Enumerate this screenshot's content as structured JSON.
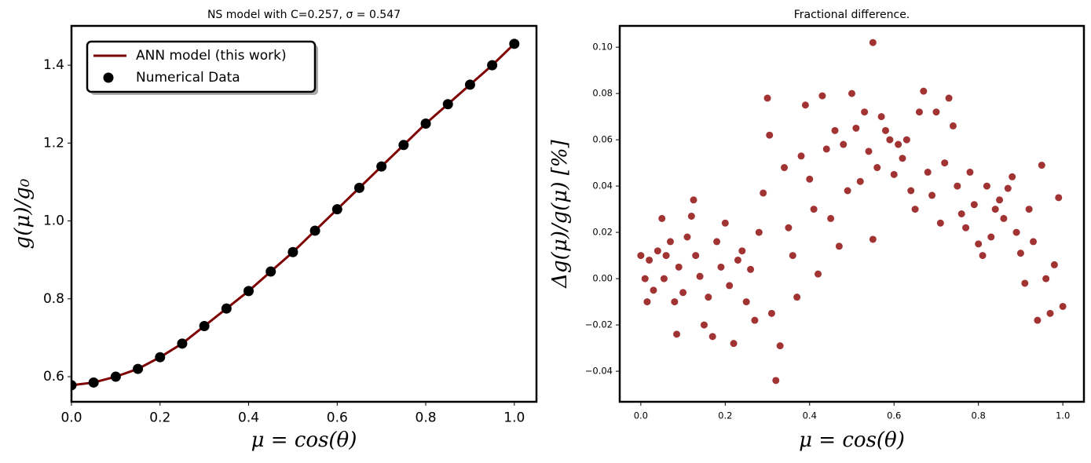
{
  "chart_data": [
    {
      "type": "line",
      "title": "NS model with C=0.257, σ = 0.547",
      "xlabel": "μ = cos(θ)",
      "ylabel": "g(μ)/g₀",
      "x": [
        0,
        0.05,
        0.1,
        0.15,
        0.2,
        0.25,
        0.3,
        0.35,
        0.4,
        0.45,
        0.5,
        0.55,
        0.6,
        0.65,
        0.7,
        0.75,
        0.8,
        0.85,
        0.9,
        0.95,
        1.0
      ],
      "series": [
        {
          "name": "ANN model (this work)",
          "type": "line",
          "color": "#7f0000",
          "values": [
            0.578,
            0.585,
            0.6,
            0.62,
            0.65,
            0.685,
            0.73,
            0.775,
            0.82,
            0.87,
            0.92,
            0.975,
            1.03,
            1.085,
            1.14,
            1.195,
            1.25,
            1.3,
            1.35,
            1.4,
            1.455
          ]
        },
        {
          "name": "Numerical Data",
          "type": "scatter",
          "color": "#000000",
          "values": [
            0.578,
            0.585,
            0.6,
            0.62,
            0.65,
            0.685,
            0.73,
            0.775,
            0.82,
            0.87,
            0.92,
            0.975,
            1.03,
            1.085,
            1.14,
            1.195,
            1.25,
            1.3,
            1.35,
            1.4,
            1.455
          ]
        }
      ],
      "xlim": [
        0,
        1.05
      ],
      "xticks": [
        {
          "value": 0,
          "label": "0.0"
        },
        0.2,
        0.4,
        0.6,
        0.8,
        {
          "value": 1,
          "label": "1.0"
        }
      ],
      "ylim": [
        0.5355,
        1.501
      ],
      "yticks": [
        0.6,
        0.8,
        {
          "value": 1,
          "label": "1.0"
        },
        1.2,
        1.4
      ],
      "legend": "upper left"
    },
    {
      "type": "scatter",
      "title": "Fractional difference.",
      "xlabel": "μ = cos(θ)",
      "ylabel": "Δg(μ)/g(μ)  [%]",
      "x": [
        0,
        0.01,
        0.015,
        0.02,
        0.03,
        0.04,
        0.05,
        0.055,
        0.06,
        0.07,
        0.08,
        0.085,
        0.09,
        0.1,
        0.11,
        0.12,
        0.125,
        0.13,
        0.14,
        0.15,
        0.16,
        0.17,
        0.18,
        0.19,
        0.2,
        0.21,
        0.22,
        0.23,
        0.24,
        0.25,
        0.26,
        0.27,
        0.28,
        0.29,
        0.3,
        0.305,
        0.31,
        0.32,
        0.33,
        0.34,
        0.35,
        0.36,
        0.37,
        0.38,
        0.39,
        0.4,
        0.41,
        0.42,
        0.43,
        0.44,
        0.45,
        0.46,
        0.47,
        0.48,
        0.49,
        0.5,
        0.51,
        0.52,
        0.53,
        0.54,
        0.55,
        0.55,
        0.56,
        0.57,
        0.58,
        0.59,
        0.6,
        0.61,
        0.62,
        0.63,
        0.64,
        0.65,
        0.66,
        0.67,
        0.68,
        0.69,
        0.7,
        0.71,
        0.72,
        0.73,
        0.74,
        0.75,
        0.76,
        0.77,
        0.78,
        0.79,
        0.8,
        0.81,
        0.82,
        0.83,
        0.84,
        0.85,
        0.86,
        0.87,
        0.88,
        0.89,
        0.9,
        0.91,
        0.92,
        0.93,
        0.94,
        0.95,
        0.96,
        0.97,
        0.98,
        0.99,
        1.0
      ],
      "series": [
        {
          "name": "Fractional difference",
          "type": "scatter",
          "color": "#8b0000",
          "values": [
            0.01,
            0,
            -0.01,
            0.008,
            -0.005,
            0.012,
            0.026,
            0,
            0.01,
            0.016,
            -0.01,
            -0.024,
            0.005,
            -0.006,
            0.018,
            0.027,
            0.034,
            0.01,
            0.001,
            -0.02,
            -0.008,
            -0.025,
            0.016,
            0.005,
            0.024,
            -0.003,
            -0.028,
            0.008,
            0.012,
            -0.01,
            0.004,
            -0.018,
            0.02,
            0.037,
            0.078,
            0.062,
            -0.015,
            -0.044,
            -0.029,
            0.048,
            0.022,
            0.01,
            -0.008,
            0.053,
            0.075,
            0.043,
            0.03,
            0.002,
            0.079,
            0.056,
            0.026,
            0.064,
            0.014,
            0.058,
            0.038,
            0.08,
            0.065,
            0.042,
            0.072,
            0.055,
            0.102,
            0.017,
            0.048,
            0.07,
            0.064,
            0.06,
            0.045,
            0.058,
            0.052,
            0.06,
            0.038,
            0.03,
            0.072,
            0.081,
            0.046,
            0.036,
            0.072,
            0.024,
            0.05,
            0.078,
            0.066,
            0.04,
            0.028,
            0.022,
            0.046,
            0.032,
            0.015,
            0.01,
            0.04,
            0.018,
            0.03,
            0.034,
            0.026,
            0.039,
            0.044,
            0.02,
            0.011,
            -0.002,
            0.03,
            0.016,
            -0.018,
            0.049,
            0,
            -0.015,
            0.006,
            0.035,
            -0.012
          ]
        }
      ],
      "xlim": [
        -0.05,
        1.05
      ],
      "xticks": [
        {
          "value": 0,
          "label": "0.0"
        },
        0.2,
        0.4,
        0.6,
        0.8,
        {
          "value": 1,
          "label": "1.0"
        }
      ],
      "ylim": [
        -0.0532,
        0.1092
      ],
      "yticks": [
        {
          "value": -0.04,
          "label": "−0.04"
        },
        {
          "value": -0.02,
          "label": "−0.02"
        },
        {
          "value": 0,
          "label": "0.00"
        },
        0.02,
        0.04,
        0.06,
        0.08,
        {
          "value": 0.1,
          "label": "0.10"
        }
      ]
    }
  ]
}
